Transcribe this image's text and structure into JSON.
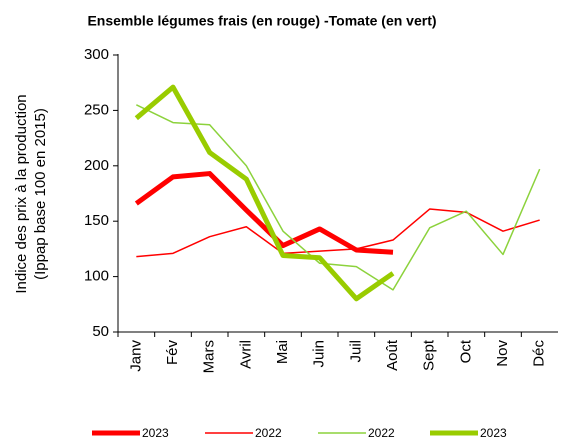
{
  "chart_data": {
    "type": "line",
    "title": "Ensemble légumes frais (en rouge) -Tomate (en vert)",
    "y_label": [
      "Indice des prix à la production",
      "(Ippap base 100 en 2015)"
    ],
    "categories": [
      "Janv",
      "Fév",
      "Mars",
      "Avril",
      "Mai",
      "Juin",
      "Juil",
      "Août",
      "Sept",
      "Oct",
      "Nov",
      "Déc"
    ],
    "series": [
      {
        "name": "2023",
        "color": "#ff0000",
        "width": 5,
        "values": [
          166,
          190,
          193,
          160,
          128,
          143,
          124,
          122,
          null,
          null,
          null,
          null
        ]
      },
      {
        "name": "2022",
        "color": "#ff0000",
        "width": 1.5,
        "values": [
          118,
          121,
          136,
          145,
          121,
          123,
          125,
          133,
          161,
          158,
          141,
          151
        ]
      },
      {
        "name": "2022",
        "color": "#8cd23c",
        "width": 1.5,
        "values": [
          255,
          239,
          237,
          200,
          141,
          112,
          109,
          88,
          144,
          159,
          120,
          197
        ]
      },
      {
        "name": "2023",
        "color": "#99cc00",
        "width": 5,
        "values": [
          243,
          271,
          212,
          188,
          119,
          117,
          80,
          103,
          null,
          null,
          null,
          null
        ]
      }
    ],
    "ylim": [
      50,
      300
    ],
    "yticks": [
      50,
      100,
      150,
      200,
      250,
      300
    ],
    "grid": false,
    "legend": "bottom"
  }
}
